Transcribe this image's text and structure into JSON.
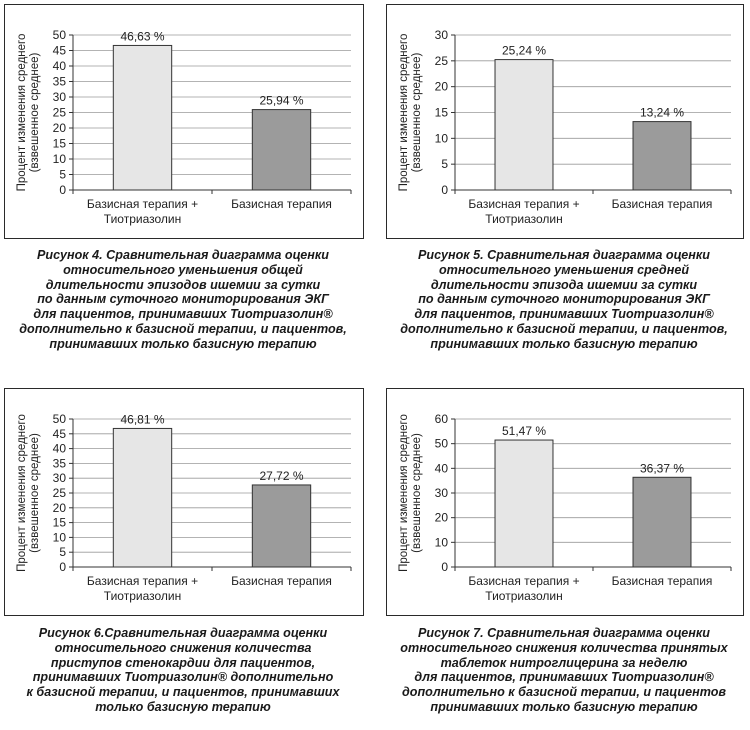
{
  "figures": [
    {
      "caption": {
        "label": "Рисунок 4.",
        "lines": [
          " Сравнительная диаграмма оценки",
          "относительного уменьшения общей",
          "длительности эпизодов ишемии за сутки",
          "по данным суточного мониторирования ЭКГ",
          "для пациентов, принимавших Тиотриазолин®",
          "дополнительно к базисной терапии, и пациентов,",
          "принимавших только базисную терапию"
        ]
      }
    },
    {
      "caption": {
        "label": "Рисунок 5.",
        "lines": [
          " Сравнительная диаграмма оценки",
          "относительного уменьшения средней",
          "длительности эпизода ишемии за сутки",
          "по данным суточного мониторирования ЭКГ",
          "для пациентов, принимавших Тиотриазолин®",
          "дополнительно к базисной терапии, и пациентов,",
          "принимавших только базисную терапию"
        ]
      }
    },
    {
      "caption": {
        "label": "Рисунок 6.",
        "lines": [
          "Сравнительная диаграмма оценки",
          "относительного снижения количества",
          "приступов стенокардии для пациентов,",
          "принимавших Тиотриазолин® дополнительно",
          "к базисной терапии, и пациентов, принимавших",
          "только базисную терапию"
        ]
      }
    },
    {
      "caption": {
        "label": "Рисунок 7.",
        "lines": [
          " Сравнительная диаграмма оценки",
          "относительного снижения количества принятых",
          "таблеток нитроглицерина за неделю",
          "для пациентов, принимавших Тиотриазолин®",
          "дополнительно к базисной терапии, и пациентов",
          "принимавших только базисную терапию"
        ]
      }
    }
  ],
  "chart_data": [
    {
      "type": "bar",
      "categories": [
        [
          "Базисная терапия +",
          "Тиотриазолин"
        ],
        [
          "Базисная терапия"
        ]
      ],
      "values": [
        46.63,
        25.94
      ],
      "data_labels": [
        "46,63 %",
        "25,94 %"
      ],
      "ylabel": [
        "Процент изменения среднего",
        "(взвешенное среднее)"
      ],
      "ylim": [
        0,
        50
      ],
      "yticks": [
        0,
        5,
        10,
        15,
        20,
        25,
        30,
        35,
        40,
        45,
        50
      ],
      "grid": true,
      "bar_colors": [
        "#e6e6e6",
        "#9b9b9b"
      ]
    },
    {
      "type": "bar",
      "categories": [
        [
          "Базисная терапия +",
          "Тиотриазолин"
        ],
        [
          "Базисная терапия"
        ]
      ],
      "values": [
        25.24,
        13.24
      ],
      "data_labels": [
        "25,24 %",
        "13,24 %"
      ],
      "ylabel": [
        "Процент изменения среднего",
        "(взвешенное среднее)"
      ],
      "ylim": [
        0,
        30
      ],
      "yticks": [
        0,
        5,
        10,
        15,
        20,
        25,
        30
      ],
      "grid": true,
      "bar_colors": [
        "#e6e6e6",
        "#9b9b9b"
      ]
    },
    {
      "type": "bar",
      "categories": [
        [
          "Базисная терапия +",
          "Тиотриазолин"
        ],
        [
          "Базисная терапия"
        ]
      ],
      "values": [
        46.81,
        27.72
      ],
      "data_labels": [
        "46,81 %",
        "27,72 %"
      ],
      "ylabel": [
        "Процент изменения среднего",
        "(взвешенное среднее)"
      ],
      "ylim": [
        0,
        50
      ],
      "yticks": [
        0,
        5,
        10,
        15,
        20,
        25,
        30,
        35,
        40,
        45,
        50
      ],
      "grid": true,
      "bar_colors": [
        "#e6e6e6",
        "#9b9b9b"
      ]
    },
    {
      "type": "bar",
      "categories": [
        [
          "Базисная терапия +",
          "Тиотриазолин"
        ],
        [
          "Базисная терапия"
        ]
      ],
      "values": [
        51.47,
        36.37
      ],
      "data_labels": [
        "51,47 %",
        "36,37 %"
      ],
      "ylabel": [
        "Процент изменения среднего",
        "(взвешенное среднее)"
      ],
      "ylim": [
        0,
        60
      ],
      "yticks": [
        0,
        10,
        20,
        30,
        40,
        50,
        60
      ],
      "grid": true,
      "bar_colors": [
        "#e6e6e6",
        "#9b9b9b"
      ]
    }
  ]
}
